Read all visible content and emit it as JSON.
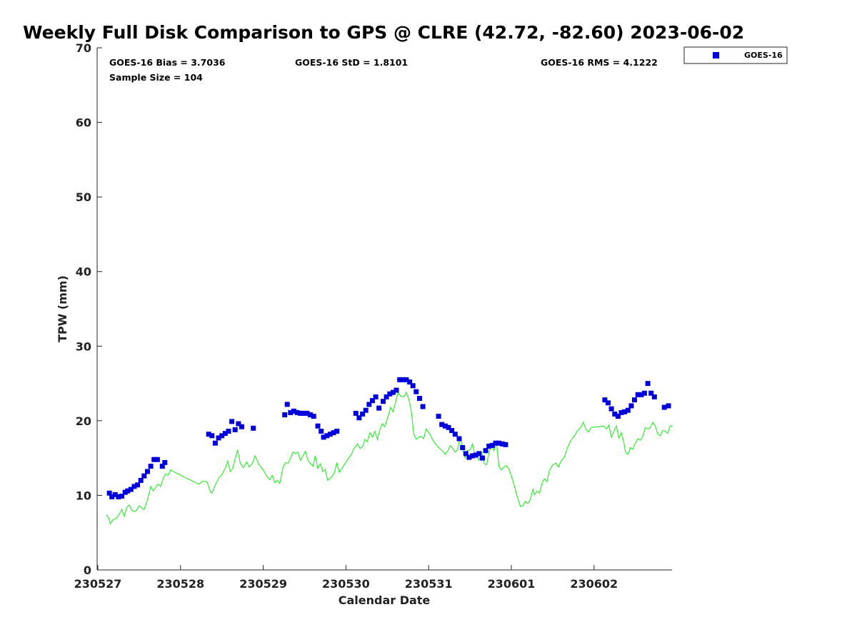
{
  "chart_data": {
    "type": "scatter",
    "title": "Weekly Full Disk Comparison to GPS @ CLRE (42.72, -82.60) 2023-06-02",
    "xlabel": "Calendar Date",
    "ylabel": "TPW (mm)",
    "xlim": [
      0.0,
      6.95
    ],
    "ylim": [
      0,
      70
    ],
    "x_ticks": [
      0,
      1,
      2,
      3,
      4,
      5,
      6
    ],
    "x_tick_labels": [
      "230527",
      "230528",
      "230529",
      "230530",
      "230531",
      "230601",
      "230602"
    ],
    "y_ticks": [
      0,
      10,
      20,
      30,
      40,
      50,
      60,
      70
    ],
    "y_tick_labels": [
      "0",
      "10",
      "20",
      "30",
      "40",
      "50",
      "60",
      "70"
    ],
    "grid": false,
    "legend_position": "top-right, outside plot",
    "stats": {
      "bias": "GOES-16 Bias = 3.7036",
      "std": "GOES-16 StD = 1.8101",
      "rms": "GOES-16 RMS = 4.1222",
      "sample": "Sample Size = 104"
    },
    "colors": {
      "goes": "#0000dd",
      "gps": "#22ee22"
    },
    "series": [
      {
        "name": "GOES-16",
        "style": "square-markers",
        "points": [
          [
            0.14,
            10.3
          ],
          [
            0.17,
            9.8
          ],
          [
            0.21,
            10.1
          ],
          [
            0.25,
            9.8
          ],
          [
            0.29,
            9.9
          ],
          [
            0.33,
            10.4
          ],
          [
            0.36,
            10.6
          ],
          [
            0.4,
            10.8
          ],
          [
            0.44,
            11.2
          ],
          [
            0.48,
            11.4
          ],
          [
            0.52,
            12.0
          ],
          [
            0.56,
            12.6
          ],
          [
            0.6,
            13.2
          ],
          [
            0.64,
            13.9
          ],
          [
            0.68,
            14.8
          ],
          [
            0.72,
            14.8
          ],
          [
            0.78,
            13.9
          ],
          [
            0.81,
            14.4
          ],
          [
            1.34,
            18.2
          ],
          [
            1.38,
            18.0
          ],
          [
            1.42,
            17.0
          ],
          [
            1.46,
            17.7
          ],
          [
            1.5,
            18.0
          ],
          [
            1.54,
            18.3
          ],
          [
            1.58,
            18.6
          ],
          [
            1.62,
            19.9
          ],
          [
            1.66,
            18.8
          ],
          [
            1.7,
            19.6
          ],
          [
            1.74,
            19.2
          ],
          [
            1.88,
            19.0
          ],
          [
            2.26,
            20.8
          ],
          [
            2.29,
            22.2
          ],
          [
            2.33,
            21.1
          ],
          [
            2.37,
            21.3
          ],
          [
            2.41,
            21.1
          ],
          [
            2.45,
            21.0
          ],
          [
            2.49,
            21.0
          ],
          [
            2.53,
            21.0
          ],
          [
            2.57,
            20.8
          ],
          [
            2.61,
            20.6
          ],
          [
            2.66,
            19.3
          ],
          [
            2.7,
            18.6
          ],
          [
            2.73,
            17.8
          ],
          [
            2.77,
            18.0
          ],
          [
            2.81,
            18.2
          ],
          [
            2.85,
            18.4
          ],
          [
            2.89,
            18.6
          ],
          [
            3.12,
            21.0
          ],
          [
            3.16,
            20.4
          ],
          [
            3.2,
            20.9
          ],
          [
            3.24,
            21.4
          ],
          [
            3.28,
            22.2
          ],
          [
            3.32,
            22.7
          ],
          [
            3.36,
            23.2
          ],
          [
            3.4,
            21.7
          ],
          [
            3.45,
            22.6
          ],
          [
            3.49,
            23.2
          ],
          [
            3.53,
            23.6
          ],
          [
            3.57,
            23.8
          ],
          [
            3.61,
            24.1
          ],
          [
            3.65,
            25.5
          ],
          [
            3.69,
            25.5
          ],
          [
            3.73,
            25.5
          ],
          [
            3.77,
            25.2
          ],
          [
            3.81,
            24.7
          ],
          [
            3.85,
            23.9
          ],
          [
            3.89,
            23.0
          ],
          [
            3.93,
            21.9
          ],
          [
            4.12,
            20.6
          ],
          [
            4.16,
            19.5
          ],
          [
            4.2,
            19.3
          ],
          [
            4.24,
            19.1
          ],
          [
            4.28,
            18.7
          ],
          [
            4.32,
            18.2
          ],
          [
            4.37,
            17.6
          ],
          [
            4.41,
            16.4
          ],
          [
            4.45,
            15.6
          ],
          [
            4.49,
            15.1
          ],
          [
            4.53,
            15.3
          ],
          [
            4.57,
            15.4
          ],
          [
            4.61,
            15.6
          ],
          [
            4.65,
            15.0
          ],
          [
            4.69,
            16.0
          ],
          [
            4.73,
            16.6
          ],
          [
            4.77,
            16.7
          ],
          [
            4.81,
            17.0
          ],
          [
            4.85,
            17.0
          ],
          [
            4.89,
            16.9
          ],
          [
            4.93,
            16.8
          ],
          [
            6.13,
            22.8
          ],
          [
            6.17,
            22.4
          ],
          [
            6.21,
            21.6
          ],
          [
            6.25,
            20.9
          ],
          [
            6.29,
            20.6
          ],
          [
            6.33,
            21.1
          ],
          [
            6.37,
            21.2
          ],
          [
            6.41,
            21.4
          ],
          [
            6.45,
            22.0
          ],
          [
            6.49,
            22.8
          ],
          [
            6.53,
            23.5
          ],
          [
            6.57,
            23.5
          ],
          [
            6.61,
            23.7
          ],
          [
            6.65,
            25.0
          ],
          [
            6.69,
            23.7
          ],
          [
            6.73,
            23.2
          ],
          [
            6.85,
            21.8
          ],
          [
            6.9,
            22.0
          ]
        ]
      },
      {
        "style": "line",
        "points": [
          [
            0.1,
            7.4
          ],
          [
            0.13,
            7.0
          ],
          [
            0.15,
            6.2
          ],
          [
            0.18,
            6.7
          ],
          [
            0.22,
            6.9
          ],
          [
            0.26,
            7.5
          ],
          [
            0.29,
            8.1
          ],
          [
            0.32,
            7.2
          ],
          [
            0.35,
            8.4
          ],
          [
            0.38,
            8.7
          ],
          [
            0.41,
            8.0
          ],
          [
            0.44,
            7.8
          ],
          [
            0.47,
            8.0
          ],
          [
            0.5,
            8.6
          ],
          [
            0.53,
            8.3
          ],
          [
            0.56,
            8.1
          ],
          [
            0.6,
            9.4
          ],
          [
            0.64,
            11.2
          ],
          [
            0.67,
            10.6
          ],
          [
            0.7,
            11.1
          ],
          [
            0.73,
            11.5
          ],
          [
            0.76,
            11.2
          ],
          [
            0.79,
            12.3
          ],
          [
            0.82,
            12.9
          ],
          [
            0.85,
            12.7
          ],
          [
            0.88,
            13.4
          ],
          [
            0.95,
            13.0
          ],
          [
            1.05,
            12.4
          ],
          [
            1.15,
            11.9
          ],
          [
            1.22,
            11.5
          ],
          [
            1.27,
            11.9
          ],
          [
            1.32,
            11.8
          ],
          [
            1.36,
            10.5
          ],
          [
            1.38,
            10.3
          ],
          [
            1.42,
            11.4
          ],
          [
            1.46,
            12.3
          ],
          [
            1.5,
            12.8
          ],
          [
            1.54,
            13.6
          ],
          [
            1.57,
            14.6
          ],
          [
            1.6,
            13.2
          ],
          [
            1.63,
            13.6
          ],
          [
            1.66,
            14.9
          ],
          [
            1.69,
            16.1
          ],
          [
            1.72,
            14.4
          ],
          [
            1.76,
            13.7
          ],
          [
            1.8,
            14.5
          ],
          [
            1.83,
            13.8
          ],
          [
            1.87,
            14.3
          ],
          [
            1.9,
            15.3
          ],
          [
            1.95,
            14.1
          ],
          [
            2.0,
            13.4
          ],
          [
            2.04,
            12.6
          ],
          [
            2.08,
            12.1
          ],
          [
            2.11,
            12.7
          ],
          [
            2.14,
            11.7
          ],
          [
            2.17,
            12.0
          ],
          [
            2.2,
            11.6
          ],
          [
            2.24,
            13.8
          ],
          [
            2.27,
            14.4
          ],
          [
            2.3,
            14.3
          ],
          [
            2.33,
            15.0
          ],
          [
            2.36,
            15.8
          ],
          [
            2.39,
            15.6
          ],
          [
            2.42,
            15.8
          ],
          [
            2.45,
            14.7
          ],
          [
            2.48,
            15.3
          ],
          [
            2.51,
            15.9
          ],
          [
            2.54,
            14.7
          ],
          [
            2.57,
            14.3
          ],
          [
            2.6,
            13.9
          ],
          [
            2.63,
            15.3
          ],
          [
            2.66,
            13.6
          ],
          [
            2.69,
            14.2
          ],
          [
            2.72,
            13.2
          ],
          [
            2.75,
            13.5
          ],
          [
            2.78,
            12.0
          ],
          [
            2.82,
            12.4
          ],
          [
            2.86,
            13.0
          ],
          [
            2.89,
            14.4
          ],
          [
            2.92,
            13.1
          ],
          [
            2.95,
            13.6
          ],
          [
            2.98,
            14.1
          ],
          [
            3.02,
            14.8
          ],
          [
            3.06,
            15.4
          ],
          [
            3.1,
            16.3
          ],
          [
            3.14,
            16.9
          ],
          [
            3.17,
            16.3
          ],
          [
            3.2,
            16.5
          ],
          [
            3.23,
            17.5
          ],
          [
            3.26,
            17.2
          ],
          [
            3.29,
            18.4
          ],
          [
            3.32,
            17.8
          ],
          [
            3.35,
            18.6
          ],
          [
            3.38,
            17.5
          ],
          [
            3.41,
            18.8
          ],
          [
            3.44,
            19.6
          ],
          [
            3.47,
            19.2
          ],
          [
            3.51,
            20.6
          ],
          [
            3.54,
            21.8
          ],
          [
            3.57,
            21.2
          ],
          [
            3.6,
            22.5
          ],
          [
            3.63,
            23.8
          ],
          [
            3.66,
            23.3
          ],
          [
            3.7,
            23.2
          ],
          [
            3.73,
            23.8
          ],
          [
            3.76,
            22.9
          ],
          [
            3.79,
            21.3
          ],
          [
            3.82,
            18.2
          ],
          [
            3.85,
            17.5
          ],
          [
            3.88,
            17.8
          ],
          [
            3.91,
            17.9
          ],
          [
            3.94,
            17.6
          ],
          [
            3.97,
            18.9
          ],
          [
            4.01,
            18.3
          ],
          [
            4.05,
            17.4
          ],
          [
            4.09,
            16.8
          ],
          [
            4.13,
            16.3
          ],
          [
            4.17,
            15.9
          ],
          [
            4.2,
            15.5
          ],
          [
            4.23,
            15.9
          ],
          [
            4.26,
            16.7
          ],
          [
            4.29,
            16.3
          ],
          [
            4.32,
            15.8
          ],
          [
            4.35,
            16.1
          ],
          [
            4.38,
            17.8
          ],
          [
            4.41,
            16.4
          ],
          [
            4.44,
            15.0
          ],
          [
            4.47,
            16.0
          ],
          [
            4.5,
            16.1
          ],
          [
            4.53,
            16.9
          ],
          [
            4.55,
            15.8
          ],
          [
            4.58,
            15.3
          ],
          [
            4.61,
            14.7
          ],
          [
            4.64,
            15.9
          ],
          [
            4.67,
            14.3
          ],
          [
            4.7,
            14.1
          ],
          [
            4.73,
            15.7
          ],
          [
            4.76,
            16.8
          ],
          [
            4.79,
            16.0
          ],
          [
            4.82,
            17.1
          ],
          [
            4.85,
            13.9
          ],
          [
            4.88,
            13.4
          ],
          [
            4.91,
            13.8
          ],
          [
            4.94,
            14.0
          ],
          [
            4.97,
            13.5
          ],
          [
            5.0,
            12.6
          ],
          [
            5.03,
            11.5
          ],
          [
            5.06,
            10.3
          ],
          [
            5.09,
            9.2
          ],
          [
            5.11,
            8.5
          ],
          [
            5.14,
            8.6
          ],
          [
            5.17,
            9.2
          ],
          [
            5.2,
            8.9
          ],
          [
            5.23,
            9.5
          ],
          [
            5.26,
            10.8
          ],
          [
            5.28,
            10.1
          ],
          [
            5.31,
            10.6
          ],
          [
            5.34,
            10.3
          ],
          [
            5.37,
            11.6
          ],
          [
            5.4,
            12.2
          ],
          [
            5.43,
            11.8
          ],
          [
            5.46,
            13.3
          ],
          [
            5.5,
            14.1
          ],
          [
            5.54,
            14.3
          ],
          [
            5.57,
            13.8
          ],
          [
            5.6,
            14.6
          ],
          [
            5.64,
            15.1
          ],
          [
            5.68,
            16.4
          ],
          [
            5.72,
            17.4
          ],
          [
            5.76,
            17.9
          ],
          [
            5.8,
            18.7
          ],
          [
            5.84,
            19.1
          ],
          [
            5.87,
            19.8
          ],
          [
            5.9,
            18.9
          ],
          [
            5.93,
            18.5
          ],
          [
            5.97,
            19.1
          ],
          [
            6.05,
            19.2
          ],
          [
            6.12,
            19.3
          ],
          [
            6.15,
            18.9
          ],
          [
            6.18,
            19.4
          ],
          [
            6.21,
            17.8
          ],
          [
            6.24,
            18.6
          ],
          [
            6.27,
            19.3
          ],
          [
            6.3,
            17.7
          ],
          [
            6.33,
            18.4
          ],
          [
            6.36,
            17.1
          ],
          [
            6.38,
            15.8
          ],
          [
            6.41,
            15.5
          ],
          [
            6.44,
            16.4
          ],
          [
            6.47,
            16.2
          ],
          [
            6.5,
            17.0
          ],
          [
            6.53,
            17.6
          ],
          [
            6.56,
            17.4
          ],
          [
            6.59,
            17.9
          ],
          [
            6.62,
            19.1
          ],
          [
            6.65,
            18.9
          ],
          [
            6.68,
            19.1
          ],
          [
            6.71,
            19.8
          ],
          [
            6.74,
            19.3
          ],
          [
            6.77,
            18.2
          ],
          [
            6.8,
            18.0
          ],
          [
            6.83,
            18.7
          ],
          [
            6.86,
            18.6
          ],
          [
            6.89,
            18.3
          ],
          [
            6.92,
            19.3
          ],
          [
            6.95,
            19.2
          ]
        ]
      }
    ]
  }
}
